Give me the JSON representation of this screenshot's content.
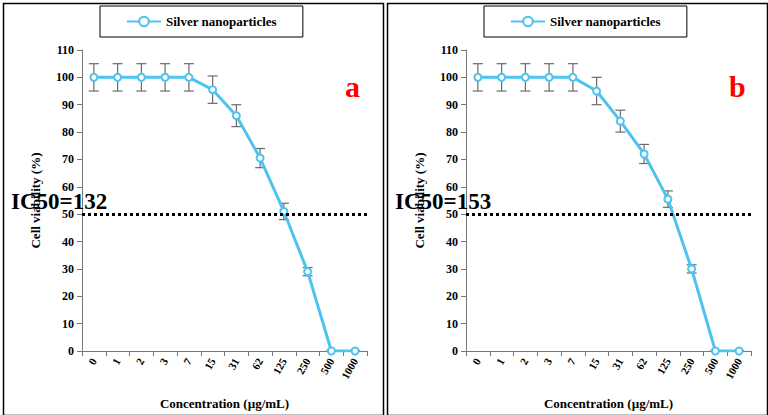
{
  "chart_data": [
    {
      "type": "line",
      "panel_label": "a",
      "annotation": "IC50=132",
      "threshold": 50,
      "x_label": "Concentration (µg/mL)",
      "y_label": "Cell viability (%)",
      "categories": [
        "0",
        "1",
        "2",
        "3",
        "7",
        "15",
        "31",
        "62",
        "125",
        "250",
        "500",
        "1000"
      ],
      "series": [
        {
          "name": "Silver nanoparticles",
          "color": "#4fc3f0",
          "marker": "circle",
          "values": [
            100,
            100,
            100,
            100,
            100,
            95.5,
            86,
            70.5,
            51,
            29,
            0,
            0
          ],
          "errors": [
            5,
            5,
            5,
            5,
            5,
            5,
            4,
            3.5,
            3,
            1.5,
            0,
            0
          ]
        }
      ],
      "ylim": [
        0,
        110
      ],
      "yticks": [
        0,
        10,
        20,
        30,
        40,
        50,
        60,
        70,
        80,
        90,
        100,
        110
      ],
      "grid": false,
      "legend": "top"
    },
    {
      "type": "line",
      "panel_label": "b",
      "annotation": "IC50=153",
      "threshold": 50,
      "x_label": "Concentration (µg/mL)",
      "y_label": "Cell viability (%)",
      "categories": [
        "0",
        "1",
        "2",
        "3",
        "7",
        "15",
        "31",
        "62",
        "125",
        "250",
        "500",
        "1000"
      ],
      "series": [
        {
          "name": "Silver nanoparticles",
          "color": "#4fc3f0",
          "marker": "circle",
          "values": [
            100,
            100,
            100,
            100,
            100,
            95,
            84,
            72,
            55.5,
            30,
            0,
            0
          ],
          "errors": [
            5,
            5,
            5,
            5,
            5,
            5,
            4,
            3.5,
            3,
            1.5,
            0,
            0
          ]
        }
      ],
      "ylim": [
        0,
        110
      ],
      "yticks": [
        0,
        10,
        20,
        30,
        40,
        50,
        60,
        70,
        80,
        90,
        100,
        110
      ],
      "grid": false,
      "legend": "top"
    }
  ]
}
